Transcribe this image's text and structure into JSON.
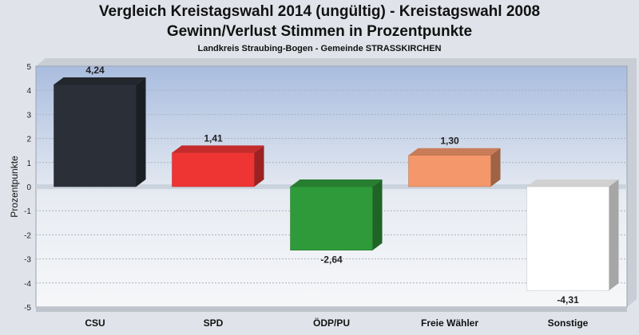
{
  "header": {
    "title": "Vergleich Kreistagswahl 2014 (ungültig) - Kreistagswahl 2008",
    "subtitle": "Gewinn/Verlust Stimmen in Prozentpunkte",
    "caption": "Landkreis Straubing-Bogen - Gemeinde STRASSKIRCHEN"
  },
  "chart_data": {
    "type": "bar",
    "title": "Vergleich Kreistagswahl 2014 (ungültig) - Kreistagswahl 2008",
    "subtitle": "Gewinn/Verlust Stimmen in Prozentpunkte",
    "xlabel": "",
    "ylabel": "Prozentpunkte",
    "ylim": [
      -5,
      5
    ],
    "yticks": [
      5,
      4,
      3,
      2,
      1,
      0,
      -1,
      -2,
      -3,
      -4,
      -5
    ],
    "grid": true,
    "categories": [
      "CSU",
      "SPD",
      "ÖDP/PU",
      "Freie Wähler",
      "Sonstige"
    ],
    "values": [
      4.24,
      1.41,
      -2.64,
      1.3,
      -4.31
    ],
    "value_labels": [
      "4,24",
      "1,41",
      "-2,64",
      "1,30",
      "-4,31"
    ],
    "colors": [
      "#2a2f38",
      "#ef3434",
      "#2f9a3a",
      "#f4976a",
      "#ffffff"
    ]
  }
}
